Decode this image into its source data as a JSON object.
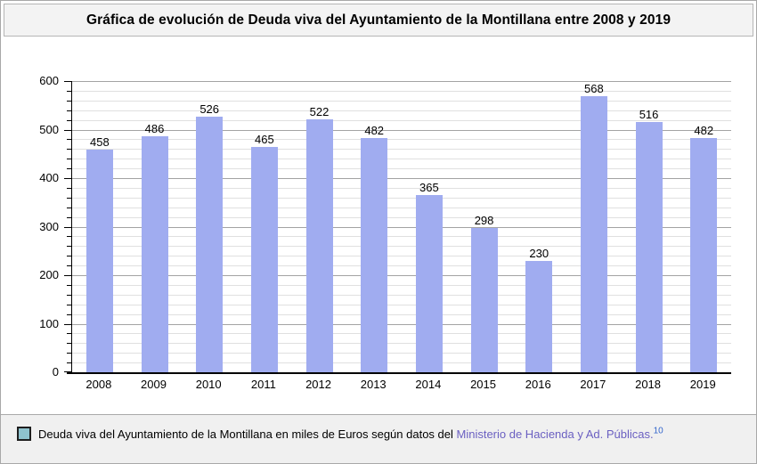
{
  "title": "Gráfica de evolución de Deuda viva del Ayuntamiento de la Montillana entre 2008 y 2019",
  "chart_data": {
    "type": "bar",
    "title": "Gráfica de evolución de Deuda viva del Ayuntamiento de la Montillana entre 2008 y 2019",
    "categories": [
      "2008",
      "2009",
      "2010",
      "2011",
      "2012",
      "2013",
      "2014",
      "2015",
      "2016",
      "2017",
      "2018",
      "2019"
    ],
    "values": [
      458,
      486,
      526,
      465,
      522,
      482,
      365,
      298,
      230,
      568,
      516,
      482
    ],
    "series_name": "Deuda viva del Ayuntamiento de la Montillana (miles de Euros)",
    "xlabel": "",
    "ylabel": "",
    "ylim": [
      0,
      600
    ],
    "ytick_step": 100,
    "minor_tick_step": 20,
    "grid": "horizontal",
    "legend_position": "bottom",
    "value_labels": true,
    "bar_color": "#a0acf0"
  },
  "legend": {
    "text": "Deuda viva del Ayuntamiento de la Montillana en miles de Euros según datos del ",
    "link_label": "Ministerio de Hacienda y Ad. Públicas.",
    "reference": "10",
    "swatch_color": "#8fc3ce",
    "link_color": "#6a5fc1",
    "reference_color": "#3366cc"
  },
  "colors": {
    "bar": "#a0acf0",
    "major_grid": "#a3a3a3",
    "minor_grid": "#e0e0e0",
    "axis": "#000000",
    "title_bar_bg": "#f3f3f3",
    "legend_bg": "#f0f0f0"
  }
}
